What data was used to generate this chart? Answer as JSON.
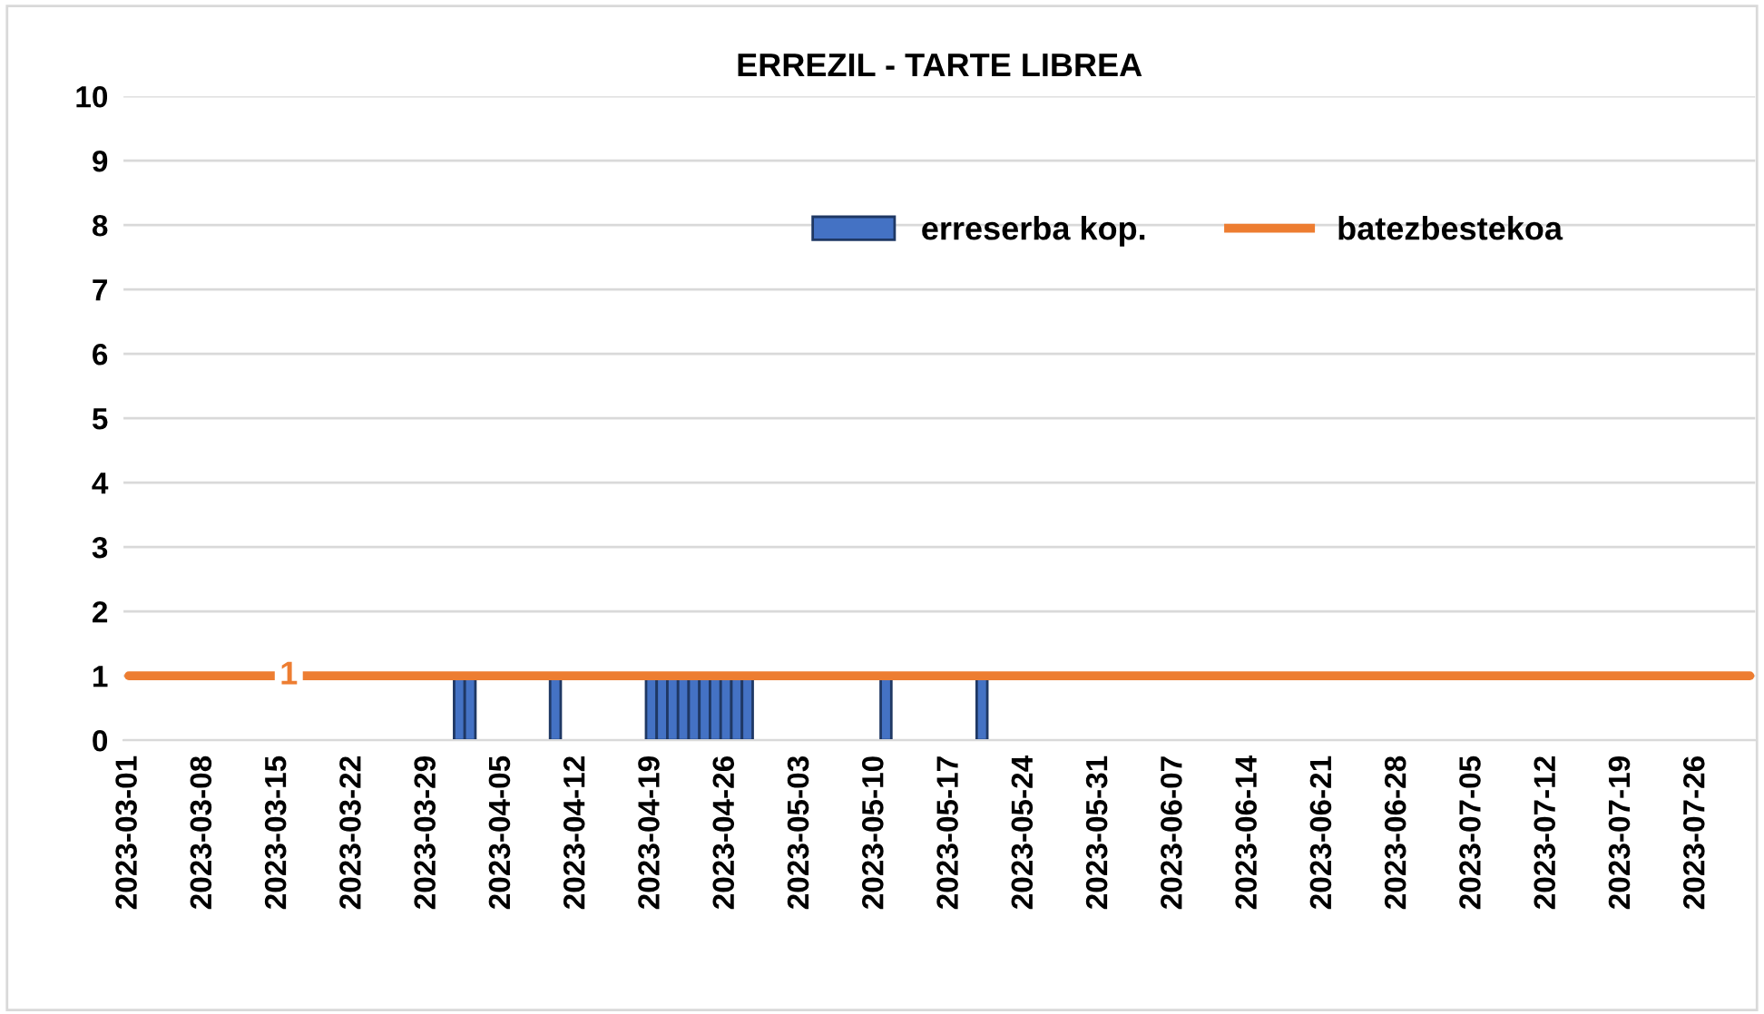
{
  "chart_data": {
    "type": "bar",
    "title": "ERREZIL - TARTE LIBREA",
    "series": [
      {
        "name": "erreserba kop.",
        "color": "#4472c4",
        "x": [
          "2023-04-01",
          "2023-04-02",
          "2023-04-10",
          "2023-04-19",
          "2023-04-20",
          "2023-04-21",
          "2023-04-22",
          "2023-04-23",
          "2023-04-24",
          "2023-04-25",
          "2023-04-26",
          "2023-04-27",
          "2023-04-28",
          "2023-05-11",
          "2023-05-20"
        ],
        "values": [
          1,
          1,
          1,
          1,
          1,
          1,
          1,
          1,
          1,
          1,
          1,
          1,
          1,
          1,
          1
        ]
      },
      {
        "name": "batezbestekoa",
        "type": "line",
        "color": "#ed7d31",
        "x": [
          "2023-03-01",
          "2023-03-16",
          "2023-07-31"
        ],
        "values": [
          1,
          1,
          1
        ],
        "value_labels": [
          null,
          "1",
          null
        ]
      }
    ],
    "xlim": [
      "2023-02-28T12:00",
      "2023-07-31T12:00"
    ],
    "xticks": [
      "2023-03-01",
      "2023-03-08",
      "2023-03-15",
      "2023-03-22",
      "2023-03-29",
      "2023-04-05",
      "2023-04-12",
      "2023-04-19",
      "2023-04-26",
      "2023-05-03",
      "2023-05-10",
      "2023-05-17",
      "2023-05-24",
      "2023-05-31",
      "2023-06-07",
      "2023-06-14",
      "2023-06-21",
      "2023-06-28",
      "2023-07-05",
      "2023-07-12",
      "2023-07-19",
      "2023-07-26"
    ],
    "ylim": [
      0,
      10
    ],
    "yticks": [
      0,
      1,
      2,
      3,
      4,
      5,
      6,
      7,
      8,
      9,
      10
    ],
    "grid": "y",
    "legend": "top right"
  }
}
